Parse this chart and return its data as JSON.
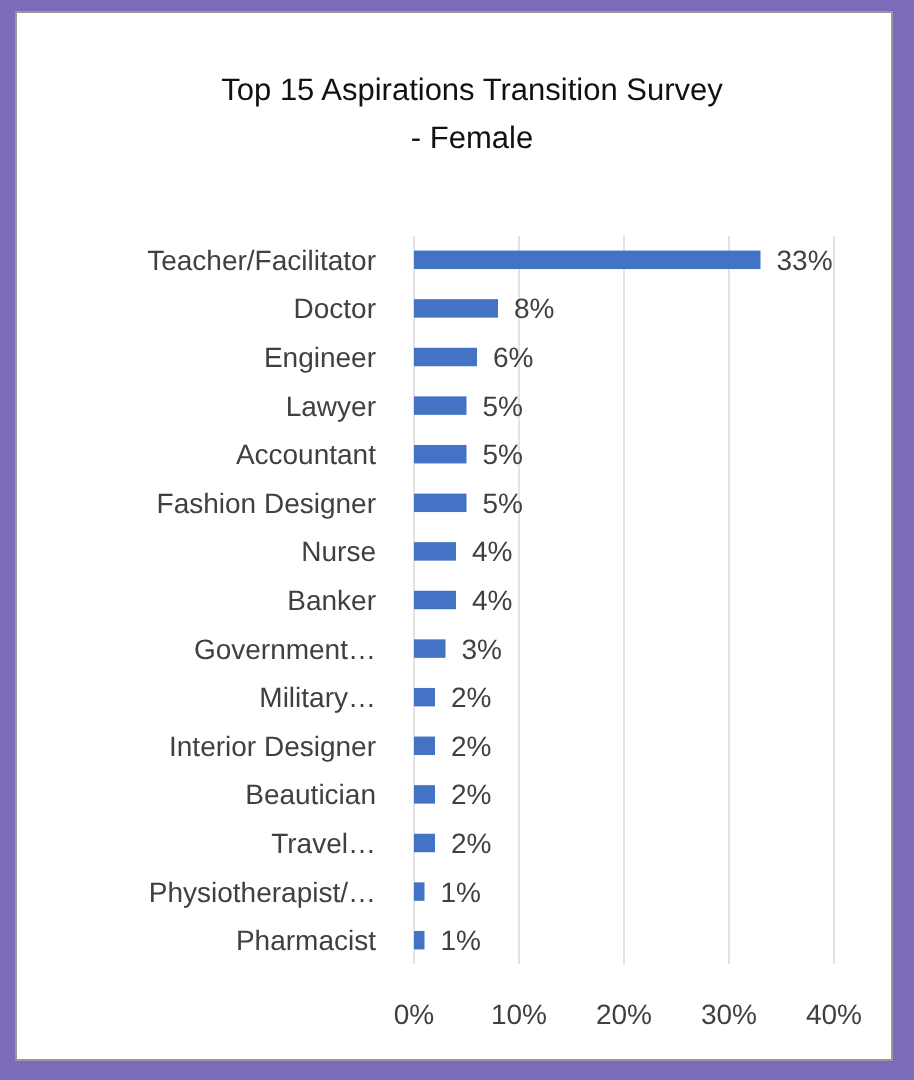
{
  "chart_data": {
    "type": "bar",
    "orientation": "horizontal",
    "title": "Top 15 Aspirations Transition Survey\n- Female",
    "categories": [
      "Teacher/Facilitator",
      "Doctor",
      "Engineer",
      "Lawyer",
      "Accountant",
      "Fashion Designer",
      "Nurse",
      "Banker",
      "Government…",
      "Military…",
      "Interior Designer",
      "Beautician",
      "Travel…",
      "Physiotherapist/…",
      "Pharmacist"
    ],
    "values": [
      33,
      8,
      6,
      5,
      5,
      5,
      4,
      4,
      3,
      2,
      2,
      2,
      2,
      1,
      1
    ],
    "value_labels": [
      "33%",
      "8%",
      "6%",
      "5%",
      "5%",
      "5%",
      "4%",
      "4%",
      "3%",
      "2%",
      "2%",
      "2%",
      "2%",
      "1%",
      "1%"
    ],
    "color": "#4472c4",
    "xlim": [
      0,
      40
    ],
    "xticks": [
      {
        "value": 0,
        "label": "0%"
      },
      {
        "value": 10,
        "label": "10%"
      },
      {
        "value": 20,
        "label": "20%"
      },
      {
        "value": 30,
        "label": "30%"
      },
      {
        "value": 40,
        "label": "40%"
      }
    ],
    "grid": "x"
  }
}
